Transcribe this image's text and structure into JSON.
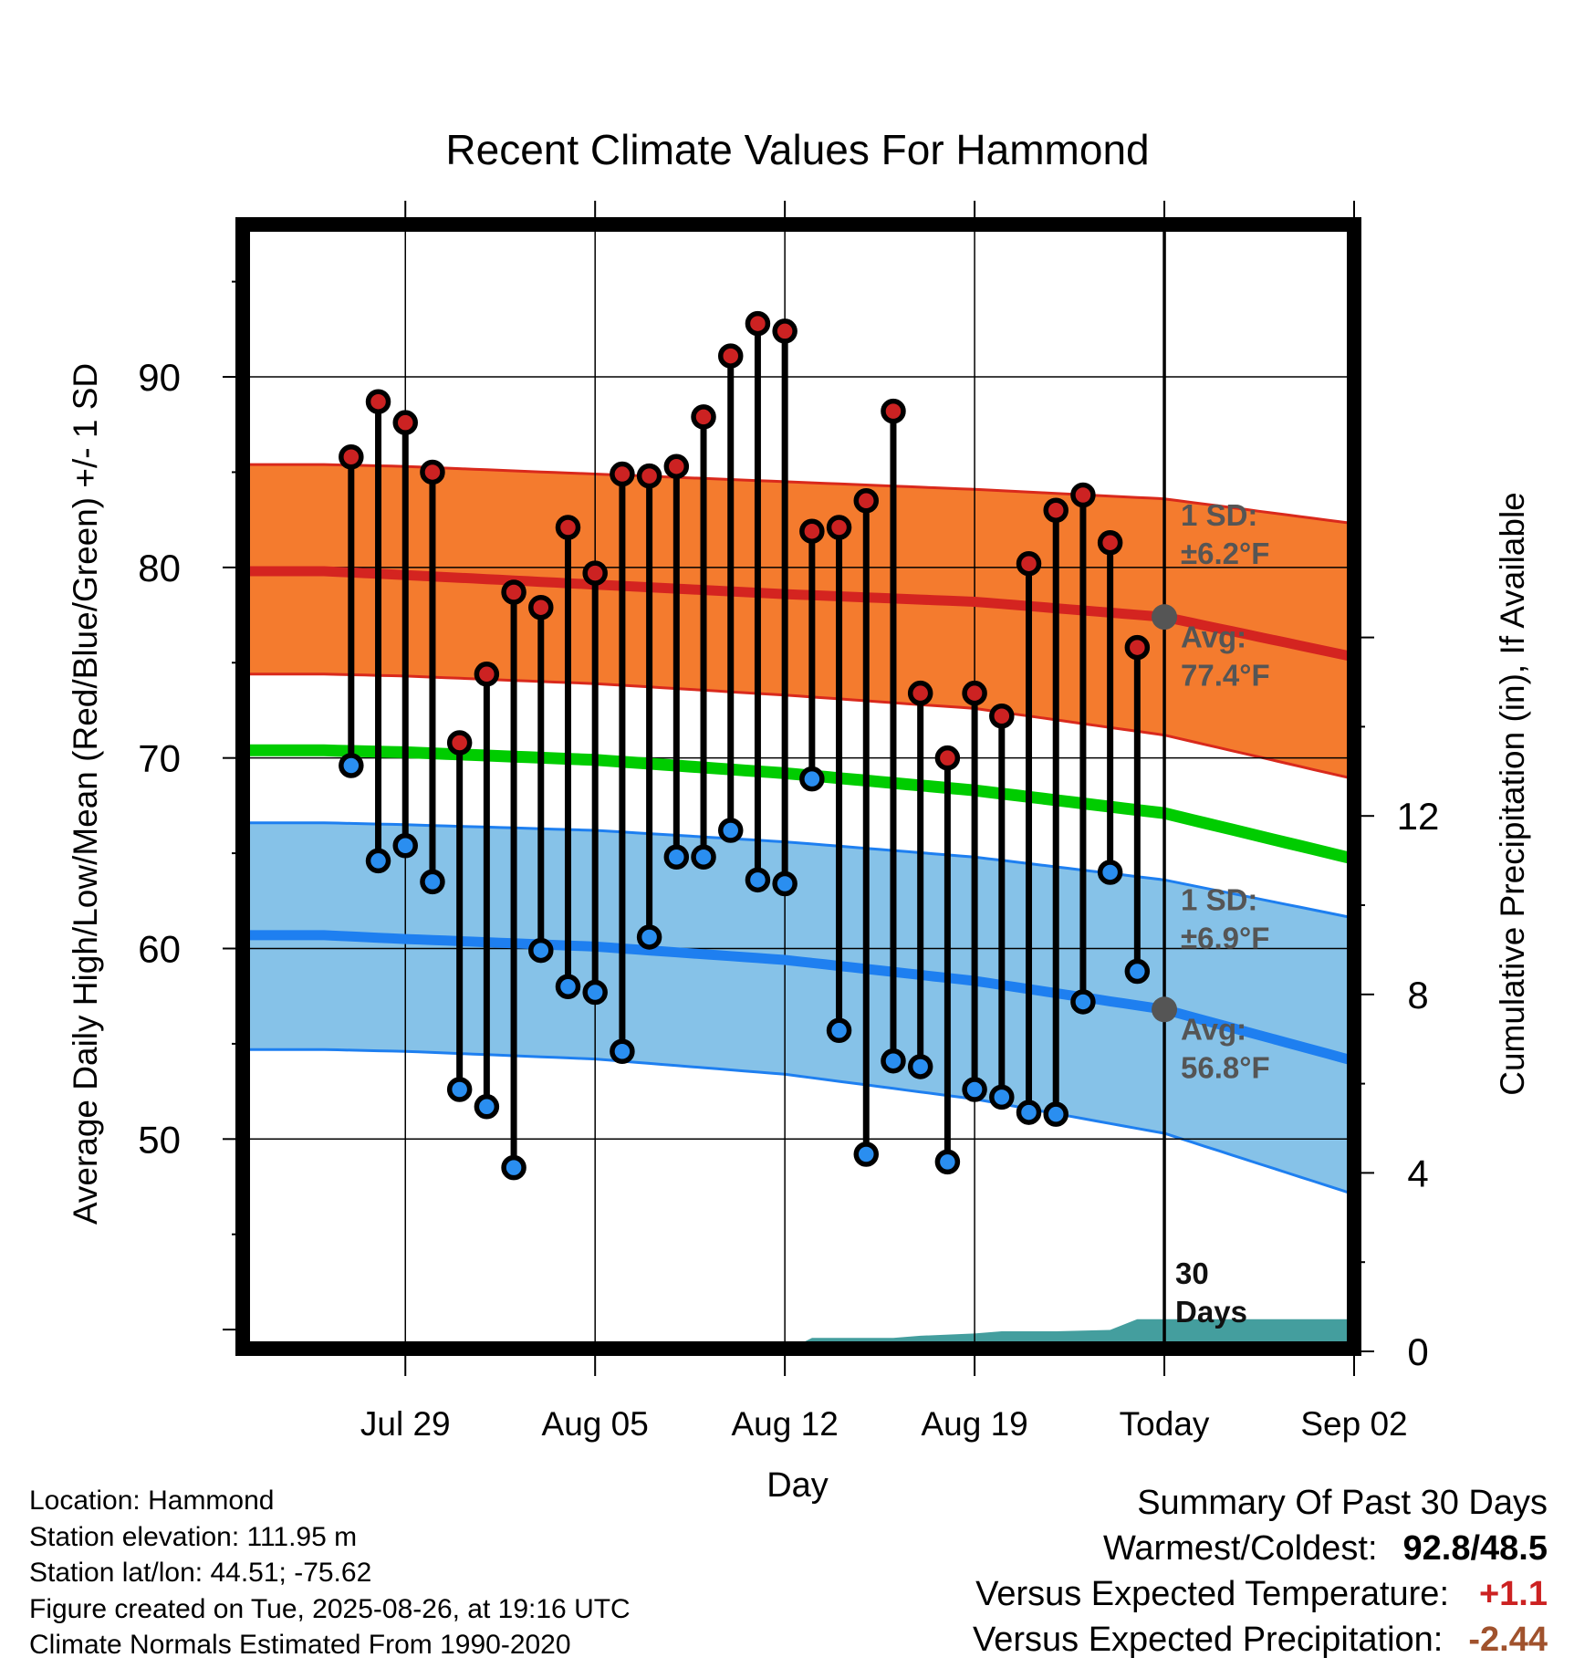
{
  "chart_data": {
    "type": "line",
    "title": "Recent Climate Values For Hammond",
    "xlabel": "Day",
    "ylabel": "Average Daily High/Low/Mean (Red/Blue/Green) +/- 1 SD",
    "y2label": "Cumulative Precipitation (in), If Available",
    "ylim": [
      39,
      98
    ],
    "y2lim": [
      0,
      24
    ],
    "yticks": [
      50,
      60,
      70,
      80,
      90
    ],
    "y2ticks": [
      0,
      4,
      8,
      12
    ],
    "x_range_days": [
      -34,
      7.0
    ],
    "x_ticks": [
      {
        "day": -28,
        "label": "Jul 29"
      },
      {
        "day": -21,
        "label": "Aug 05"
      },
      {
        "day": -14,
        "label": "Aug 12"
      },
      {
        "day": -7,
        "label": "Aug 19"
      },
      {
        "day": 0,
        "label": "Today"
      },
      {
        "day": 7,
        "label": "Sep 02"
      }
    ],
    "today_day": 0,
    "normals": {
      "days": [
        -31,
        -28,
        -21,
        -14,
        -7,
        0,
        7
      ],
      "high_mean": [
        79.8,
        79.6,
        79.1,
        78.6,
        78.2,
        77.4,
        75.3
      ],
      "high_upper": [
        85.4,
        85.3,
        84.9,
        84.5,
        84.1,
        83.6,
        82.3
      ],
      "high_lower": [
        74.4,
        74.3,
        73.9,
        73.3,
        72.6,
        71.2,
        68.9
      ],
      "mean": [
        70.4,
        70.3,
        69.9,
        69.2,
        68.3,
        67.1,
        64.7
      ],
      "low_mean": [
        60.7,
        60.5,
        60.1,
        59.4,
        58.3,
        56.8,
        54.1
      ],
      "low_upper": [
        66.6,
        66.5,
        66.2,
        65.6,
        64.8,
        63.6,
        61.6
      ],
      "low_lower": [
        54.7,
        54.6,
        54.2,
        53.4,
        52.1,
        50.3,
        47.1
      ]
    },
    "daily": {
      "days": [
        -30,
        -29,
        -28,
        -27,
        -26,
        -25,
        -24,
        -23,
        -22,
        -21,
        -20,
        -19,
        -18,
        -17,
        -16,
        -15,
        -14,
        -13,
        -12,
        -11,
        -10,
        -9,
        -8,
        -7,
        -6,
        -5,
        -4,
        -3,
        -2,
        -1
      ],
      "high": [
        85.8,
        88.7,
        87.6,
        85.0,
        70.8,
        74.4,
        78.7,
        77.9,
        82.1,
        79.7,
        84.9,
        84.8,
        85.3,
        87.9,
        91.1,
        92.8,
        92.4,
        81.9,
        82.1,
        83.5,
        88.2,
        73.4,
        70.0,
        73.4,
        72.2,
        80.2,
        83.0,
        83.8,
        81.3,
        75.8
      ],
      "low": [
        69.6,
        64.6,
        65.4,
        63.5,
        52.6,
        51.7,
        48.5,
        59.9,
        58.0,
        57.7,
        54.6,
        60.6,
        64.8,
        64.8,
        66.2,
        63.6,
        63.4,
        68.9,
        55.7,
        49.2,
        54.1,
        53.8,
        48.8,
        52.6,
        52.2,
        51.4,
        51.3,
        57.2,
        64.0,
        58.8
      ]
    },
    "precip_cumulative": {
      "days": [
        -14,
        -13,
        -11,
        -10,
        -9,
        -7,
        -6,
        -4,
        -2,
        -1,
        0,
        7
      ],
      "values": [
        0,
        0.3,
        0.3,
        0.3,
        0.35,
        0.4,
        0.45,
        0.45,
        0.48,
        0.72,
        0.72,
        0.72
      ]
    },
    "annotations": {
      "high_sd": "1 SD:\n±6.2°F",
      "high_avg": "Avg:\n77.4°F",
      "low_sd": "1 SD:\n±6.9°F",
      "low_avg": "Avg:\n56.8°F",
      "days_label": "30\nDays"
    },
    "today_high_avg": 77.4,
    "today_low_avg": 56.8,
    "colors": {
      "high_band": "#f47b2e",
      "high_band_edge": "#d9291c",
      "high_line": "#d42420",
      "low_band": "#86c2e8",
      "low_band_edge": "#1e7ff0",
      "low_line": "#1e7ff0",
      "mean_line": "#00cc00",
      "precip": "#449e9e",
      "high_dot": "#cc2222",
      "low_dot": "#2a8ef0",
      "annotation": "#555555"
    }
  },
  "footer": {
    "location": "Location: Hammond",
    "elevation": "Station elevation: 111.95 m",
    "latlon": "Station lat/lon: 44.51; -75.62",
    "created": "Figure created on Tue, 2025-08-26, at 19:16 UTC",
    "normals": "Climate Normals Estimated From 1990-2020"
  },
  "summary": {
    "title": "Summary Of Past 30 Days",
    "warmest_label": "Warmest/Coldest:",
    "warmest_value": "92.8/48.5",
    "temp_label": "Versus Expected Temperature:",
    "temp_value": "+1.1",
    "temp_color": "#cc2222",
    "precip_label": "Versus Expected Precipitation:",
    "precip_value": "-2.44",
    "precip_color": "#a0522d"
  }
}
